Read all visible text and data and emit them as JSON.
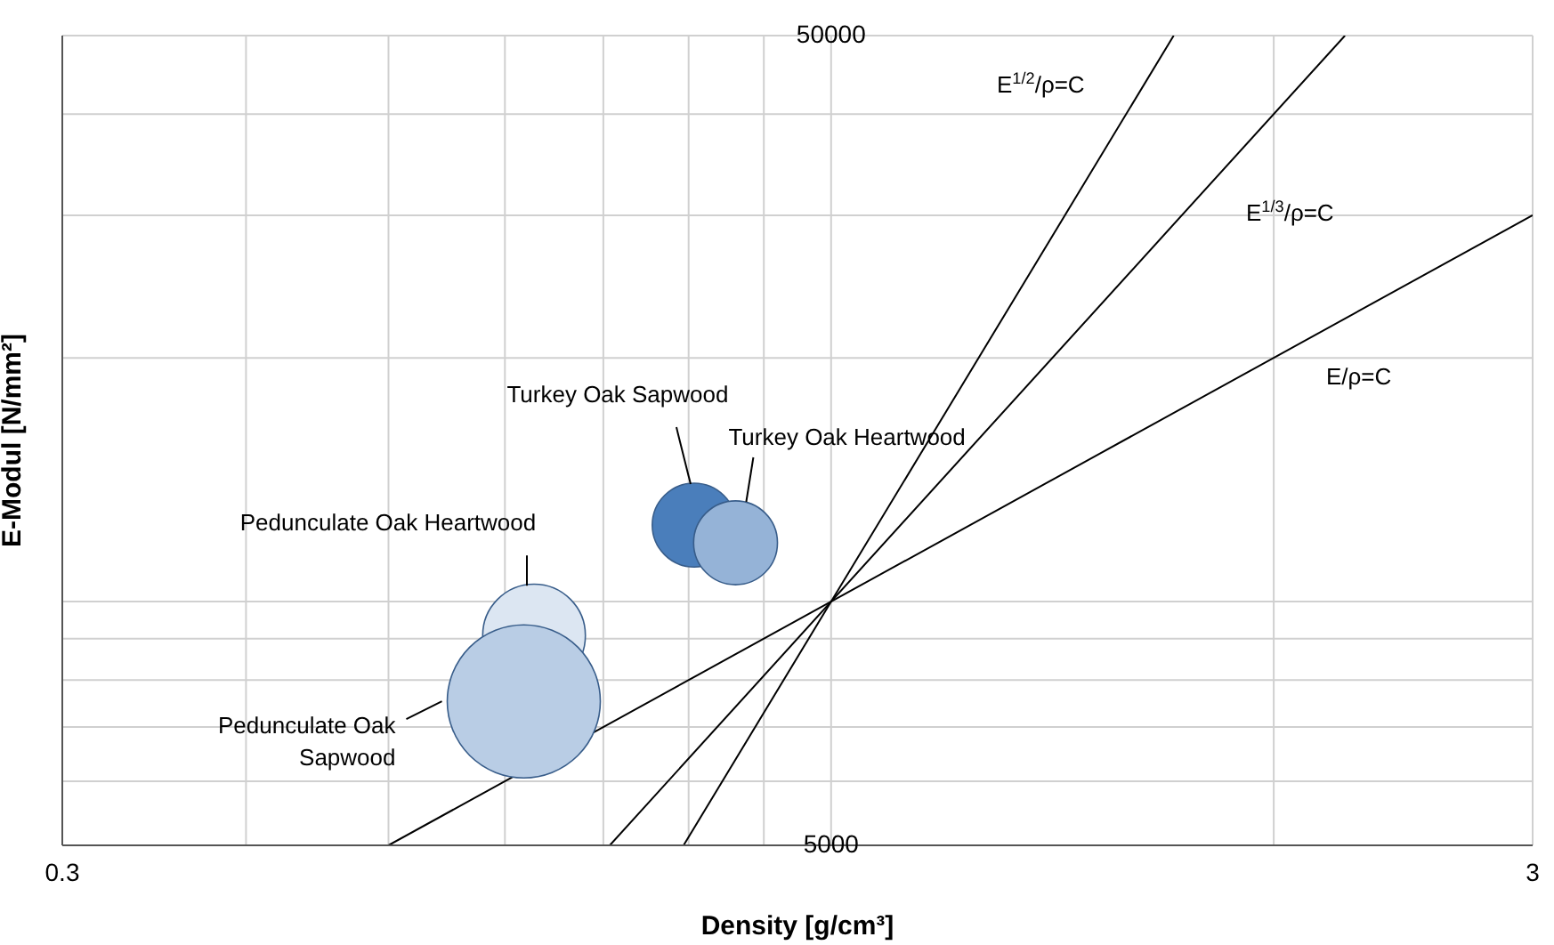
{
  "chart_data": {
    "type": "bubble",
    "xlabel": "Density [g/cm³]",
    "ylabel": "E-Modul [N/mm²]",
    "log": "xy",
    "grid": true,
    "xlim": [
      0.3,
      3
    ],
    "xticks": [
      0.3,
      {
        "value": 0.4,
        "label": null
      },
      {
        "value": 0.5,
        "label": null
      },
      {
        "value": 0.6,
        "label": null
      },
      {
        "value": 0.7,
        "label": null
      },
      {
        "value": 0.8,
        "label": null
      },
      {
        "value": 0.9,
        "label": null
      },
      {
        "value": 1,
        "label": null
      },
      {
        "value": 2,
        "label": null
      },
      3
    ],
    "ylim": [
      5000,
      50000
    ],
    "yticks": [
      5000,
      {
        "value": 6000,
        "label": null
      },
      {
        "value": 7000,
        "label": null
      },
      {
        "value": 8000,
        "label": null
      },
      {
        "value": 9000,
        "label": null
      },
      {
        "value": 10000,
        "label": null
      },
      {
        "value": 20000,
        "label": null
      },
      {
        "value": 30000,
        "label": null
      },
      {
        "value": 40000,
        "label": null
      },
      50000
    ],
    "series": [
      {
        "name": "Turkey Oak Sapwood",
        "color": "#4a7ebb",
        "x": [
          0.807
        ],
        "values": [
          12430
        ],
        "sizes": [
          0.3
        ]
      },
      {
        "name": "Turkey Oak Heartwood",
        "color": "#95b3d7",
        "x": [
          0.861
        ],
        "values": [
          11820
        ],
        "sizes": [
          0.3
        ]
      },
      {
        "name": "Pedunculate Oak Heartwood",
        "color": "#dce6f2",
        "x": [
          0.628
        ],
        "values": [
          9080
        ],
        "sizes": [
          0.45
        ]
      },
      {
        "name": "Pedunculate Oak Sapwood",
        "color": "#b9cde5",
        "x": [
          0.618
        ],
        "values": [
          7530
        ],
        "sizes": [
          1
        ]
      },
      {
        "type": "line",
        "color": "#000000",
        "x": [
          0.5,
          3
        ],
        "values": [
          5000,
          30000
        ]
      },
      {
        "type": "line",
        "color": "#000000",
        "x": [
          0.7071,
          2.2361
        ],
        "values": [
          5000,
          50000
        ]
      },
      {
        "type": "line",
        "color": "#000000",
        "x": [
          0.7937,
          1.71
        ],
        "values": [
          5000,
          50000
        ]
      }
    ],
    "annotations": [
      "E$^{1/2}$/ρ=C",
      "E$^{1/3}$/ρ=C",
      "E/ρ=C"
    ]
  }
}
